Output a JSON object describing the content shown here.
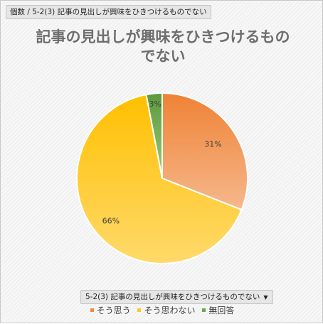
{
  "field_tag": "個数 / 5-2(3) 記事の見出しが興味をひきつけるものでない",
  "legend_filter_label": "5-2(3) 記事の見出しが興味をひきつけるものでない",
  "chart_data": {
    "type": "pie",
    "title": "記事の見出しが興味をひきつけるものでない",
    "categories": [
      "そう思う",
      "そう思わない",
      "無回答"
    ],
    "values": [
      31,
      66,
      3
    ],
    "data_labels": [
      "31%",
      "66%",
      "3%"
    ],
    "colors": [
      "#ef8a3c",
      "#ffc626",
      "#6aa84f"
    ],
    "legend_position": "bottom"
  }
}
